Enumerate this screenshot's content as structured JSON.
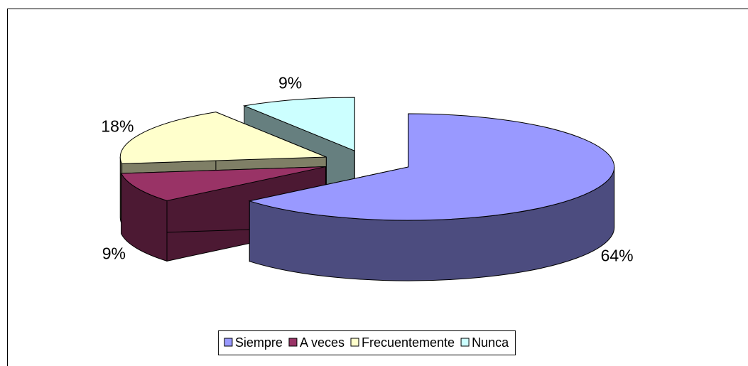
{
  "chart_data": {
    "type": "pie",
    "categories": [
      "Siempre",
      "A veces",
      "Frecuentemente",
      "Nunca"
    ],
    "values": [
      64,
      9,
      18,
      9
    ],
    "value_labels": [
      "64%",
      "9%",
      "18%",
      "9%"
    ],
    "colors": [
      "#9999ff",
      "#993366",
      "#ffffcc",
      "#ccffff"
    ],
    "legend": "bottom"
  }
}
